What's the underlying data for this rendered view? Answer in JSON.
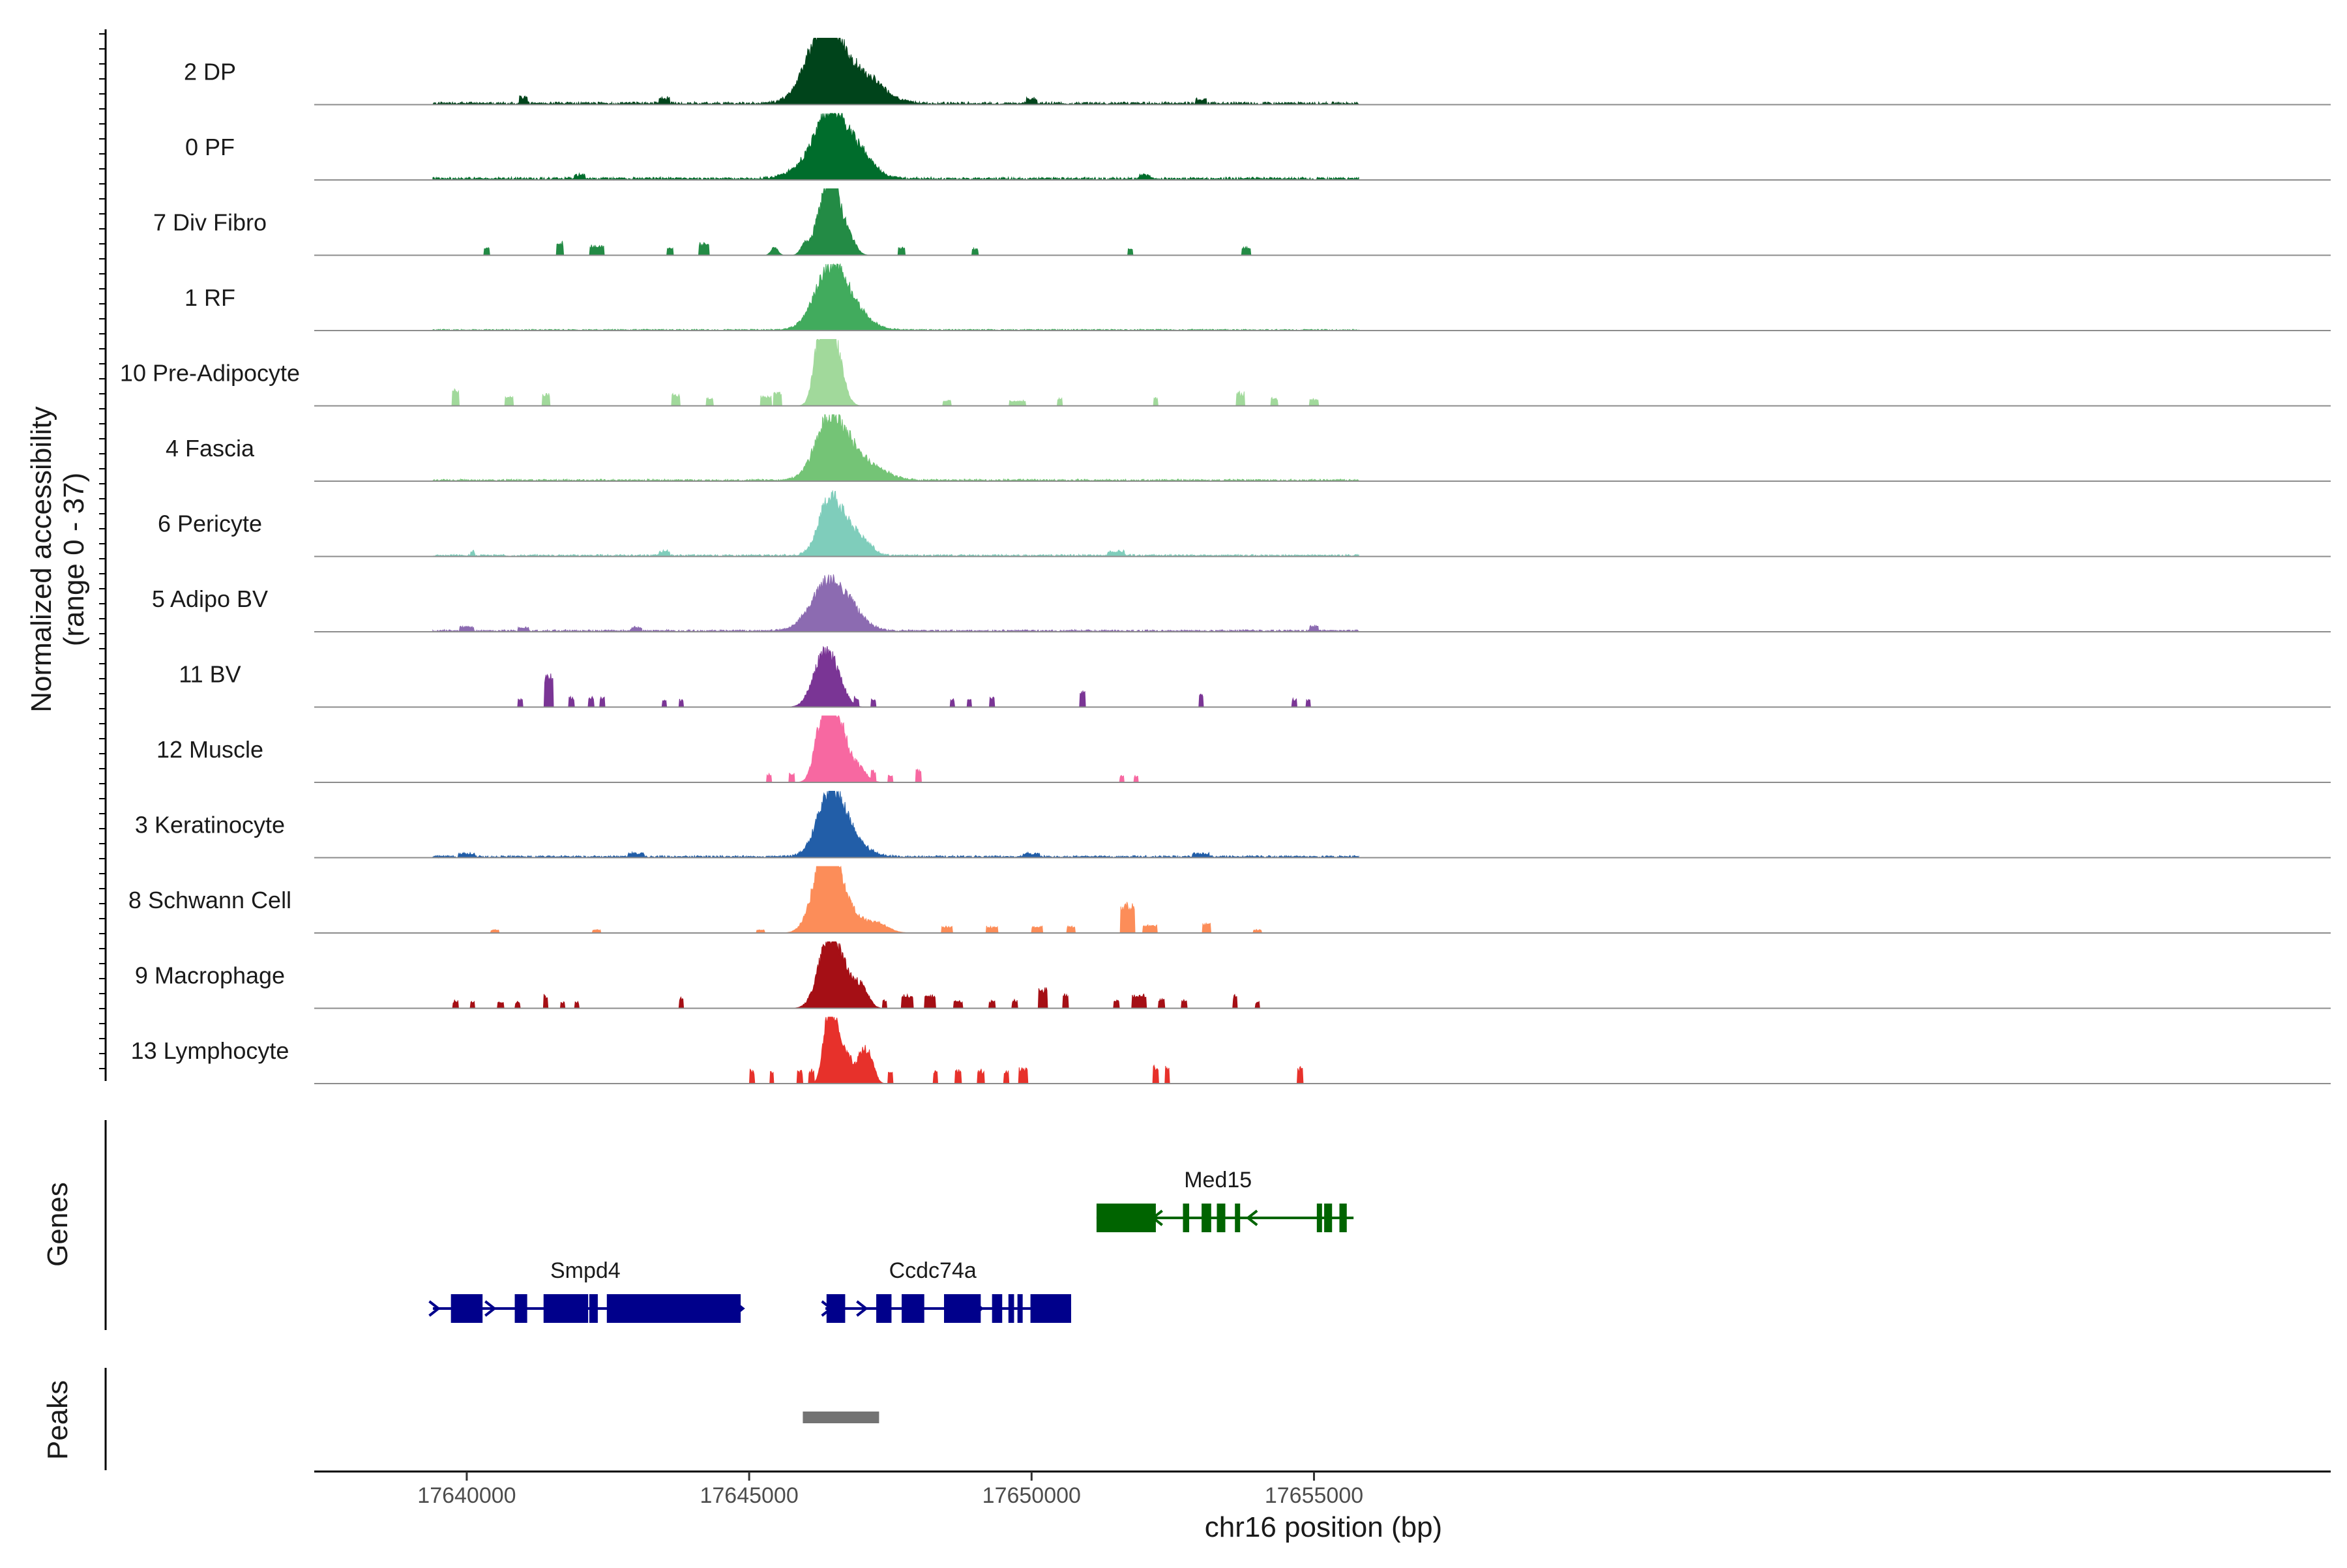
{
  "chart_data": {
    "type": "coverage",
    "chromosome": "chr16",
    "xlabel": "chr16 position (bp)",
    "ylabel": "Normalized accessibility",
    "ylabel_range": "(range 0 - 37)",
    "xlim": [
      17637300,
      17673000
    ],
    "xticks": [
      {
        "value": 17640000,
        "label": "17640000"
      },
      {
        "value": 17645000,
        "label": "17645000"
      },
      {
        "value": 17650000,
        "label": "17650000"
      },
      {
        "value": 17655000,
        "label": "17655000"
      }
    ],
    "tracks": [
      {
        "name": "2 DP",
        "color": "#00441b",
        "baseline": 0.04,
        "peaks": [
          [
            17646300,
            1.0,
            300
          ],
          [
            17646750,
            0.35,
            350
          ],
          [
            17647200,
            0.2,
            300
          ]
        ],
        "spots": [
          [
            17641000,
            0.1,
            150
          ],
          [
            17643500,
            0.08,
            200
          ],
          [
            17650000,
            0.08,
            200
          ],
          [
            17653000,
            0.06,
            200
          ]
        ]
      },
      {
        "name": "0 PF",
        "color": "#006d2c",
        "baseline": 0.04,
        "peaks": [
          [
            17646450,
            1.0,
            260
          ],
          [
            17646950,
            0.35,
            250
          ],
          [
            17646000,
            0.15,
            300
          ]
        ],
        "spots": [
          [
            17642000,
            0.06,
            200
          ],
          [
            17652000,
            0.06,
            200
          ]
        ]
      },
      {
        "name": "7 Div Fibro",
        "color": "#238b45",
        "baseline": 0.0,
        "peaks": [
          [
            17646500,
            1.0,
            120
          ],
          [
            17646350,
            0.55,
            90
          ],
          [
            17646200,
            0.35,
            90
          ],
          [
            17646750,
            0.3,
            120
          ],
          [
            17645450,
            0.12,
            60
          ],
          [
            17646000,
            0.18,
            80
          ]
        ],
        "spots": [
          [
            17640350,
            0.12,
            100
          ],
          [
            17641650,
            0.2,
            120
          ],
          [
            17642300,
            0.14,
            250
          ],
          [
            17643600,
            0.12,
            120
          ],
          [
            17644200,
            0.18,
            180
          ],
          [
            17647700,
            0.12,
            120
          ],
          [
            17649000,
            0.1,
            120
          ],
          [
            17651750,
            0.1,
            80
          ],
          [
            17653800,
            0.12,
            160
          ]
        ]
      },
      {
        "name": "1 RF",
        "color": "#41ab5d",
        "baseline": 0.02,
        "peaks": [
          [
            17646450,
            0.9,
            280
          ],
          [
            17646850,
            0.2,
            300
          ]
        ],
        "spots": []
      },
      {
        "name": "10 Pre-Adipocyte",
        "color": "#a1d99b",
        "baseline": 0.0,
        "peaks": [
          [
            17646250,
            0.95,
            110
          ],
          [
            17646450,
            0.8,
            110
          ],
          [
            17646600,
            0.45,
            120
          ]
        ],
        "spots": [
          [
            17639800,
            0.25,
            120
          ],
          [
            17640750,
            0.15,
            150
          ],
          [
            17641400,
            0.18,
            130
          ],
          [
            17643700,
            0.18,
            150
          ],
          [
            17644300,
            0.12,
            120
          ],
          [
            17645300,
            0.15,
            200
          ],
          [
            17645500,
            0.2,
            150
          ],
          [
            17648500,
            0.08,
            150
          ],
          [
            17649750,
            0.08,
            300
          ],
          [
            17650500,
            0.12,
            80
          ],
          [
            17652200,
            0.12,
            80
          ],
          [
            17653700,
            0.2,
            150
          ],
          [
            17654300,
            0.12,
            120
          ],
          [
            17655000,
            0.1,
            150
          ]
        ]
      },
      {
        "name": "4 Fascia",
        "color": "#74c476",
        "baseline": 0.03,
        "peaks": [
          [
            17646450,
            0.95,
            260
          ],
          [
            17646900,
            0.25,
            250
          ],
          [
            17647300,
            0.12,
            250
          ]
        ],
        "spots": []
      },
      {
        "name": "6 Pericyte",
        "color": "#7fcdbb",
        "baseline": 0.03,
        "peaks": [
          [
            17646450,
            0.9,
            200
          ],
          [
            17646800,
            0.25,
            150
          ],
          [
            17647050,
            0.18,
            150
          ]
        ],
        "spots": [
          [
            17640100,
            0.06,
            80
          ],
          [
            17643500,
            0.06,
            200
          ],
          [
            17651500,
            0.06,
            300
          ]
        ]
      },
      {
        "name": "5 Adipo BV",
        "color": "#8c6bb1",
        "baseline": 0.03,
        "peaks": [
          [
            17646400,
            0.7,
            300
          ],
          [
            17646800,
            0.2,
            250
          ]
        ],
        "spots": [
          [
            17640000,
            0.06,
            250
          ],
          [
            17641000,
            0.05,
            200
          ],
          [
            17643000,
            0.05,
            200
          ],
          [
            17655000,
            0.08,
            150
          ]
        ]
      },
      {
        "name": "11 BV",
        "color": "#7a3595",
        "baseline": 0.0,
        "peaks": [
          [
            17646300,
            0.7,
            180
          ],
          [
            17646550,
            0.35,
            150
          ]
        ],
        "spots": [
          [
            17640950,
            0.12,
            80
          ],
          [
            17641450,
            0.5,
            150
          ],
          [
            17641850,
            0.15,
            100
          ],
          [
            17642200,
            0.15,
            100
          ],
          [
            17642400,
            0.15,
            80
          ],
          [
            17643500,
            0.12,
            80
          ],
          [
            17643800,
            0.12,
            80
          ],
          [
            17646900,
            0.12,
            80
          ],
          [
            17647200,
            0.12,
            80
          ],
          [
            17648600,
            0.12,
            80
          ],
          [
            17648900,
            0.12,
            80
          ],
          [
            17649300,
            0.15,
            80
          ],
          [
            17650900,
            0.25,
            100
          ],
          [
            17653000,
            0.2,
            80
          ],
          [
            17654650,
            0.12,
            80
          ],
          [
            17654900,
            0.12,
            80
          ]
        ]
      },
      {
        "name": "12 Muscle",
        "color": "#f768a1",
        "baseline": 0.0,
        "peaks": [
          [
            17646450,
            1.0,
            140
          ],
          [
            17646250,
            0.55,
            120
          ],
          [
            17646650,
            0.45,
            120
          ],
          [
            17646900,
            0.25,
            150
          ]
        ],
        "spots": [
          [
            17645350,
            0.12,
            80
          ],
          [
            17645750,
            0.15,
            100
          ],
          [
            17647200,
            0.15,
            80
          ],
          [
            17647500,
            0.12,
            80
          ],
          [
            17648000,
            0.2,
            100
          ],
          [
            17651600,
            0.1,
            80
          ],
          [
            17651850,
            0.1,
            80
          ]
        ]
      },
      {
        "name": "3 Keratinocyte",
        "color": "#225ea8",
        "baseline": 0.03,
        "peaks": [
          [
            17646450,
            1.0,
            230
          ],
          [
            17646850,
            0.2,
            250
          ]
        ],
        "spots": [
          [
            17640000,
            0.05,
            300
          ],
          [
            17643000,
            0.05,
            300
          ],
          [
            17650000,
            0.05,
            300
          ],
          [
            17653000,
            0.05,
            300
          ]
        ]
      },
      {
        "name": "8 Schwann Cell",
        "color": "#fc8d59",
        "baseline": 0.0,
        "peaks": [
          [
            17646300,
            0.95,
            200
          ],
          [
            17646500,
            0.7,
            150
          ],
          [
            17646800,
            0.3,
            180
          ],
          [
            17647250,
            0.15,
            200
          ]
        ],
        "spots": [
          [
            17640500,
            0.05,
            150
          ],
          [
            17642300,
            0.05,
            150
          ],
          [
            17645200,
            0.05,
            150
          ],
          [
            17648500,
            0.1,
            200
          ],
          [
            17649300,
            0.1,
            200
          ],
          [
            17650100,
            0.1,
            200
          ],
          [
            17650700,
            0.1,
            150
          ],
          [
            17651700,
            0.45,
            250
          ],
          [
            17652100,
            0.12,
            250
          ],
          [
            17653100,
            0.15,
            150
          ],
          [
            17654000,
            0.05,
            150
          ]
        ]
      },
      {
        "name": "9 Macrophage",
        "color": "#a50f15",
        "baseline": 0.0,
        "peaks": [
          [
            17646400,
            1.0,
            180
          ],
          [
            17646700,
            0.4,
            180
          ],
          [
            17647000,
            0.25,
            120
          ]
        ],
        "spots": [
          [
            17639800,
            0.12,
            100
          ],
          [
            17640100,
            0.1,
            80
          ],
          [
            17640600,
            0.1,
            100
          ],
          [
            17640900,
            0.1,
            80
          ],
          [
            17641400,
            0.2,
            80
          ],
          [
            17641700,
            0.1,
            80
          ],
          [
            17641950,
            0.1,
            80
          ],
          [
            17643800,
            0.15,
            80
          ],
          [
            17647400,
            0.12,
            80
          ],
          [
            17647800,
            0.2,
            200
          ],
          [
            17648200,
            0.2,
            200
          ],
          [
            17648700,
            0.12,
            150
          ],
          [
            17649300,
            0.12,
            100
          ],
          [
            17649700,
            0.12,
            100
          ],
          [
            17650200,
            0.3,
            150
          ],
          [
            17650600,
            0.2,
            100
          ],
          [
            17651500,
            0.12,
            100
          ],
          [
            17651900,
            0.2,
            250
          ],
          [
            17652300,
            0.15,
            100
          ],
          [
            17652700,
            0.12,
            100
          ],
          [
            17653600,
            0.2,
            80
          ],
          [
            17654000,
            0.1,
            80
          ]
        ]
      },
      {
        "name": "13 Lymphocyte",
        "color": "#e7312b",
        "baseline": 0.0,
        "peaks": [
          [
            17646400,
            1.0,
            90
          ],
          [
            17646550,
            0.6,
            90
          ],
          [
            17646750,
            0.4,
            90
          ],
          [
            17647000,
            0.45,
            80
          ],
          [
            17647150,
            0.35,
            80
          ]
        ],
        "spots": [
          [
            17645050,
            0.2,
            80
          ],
          [
            17645400,
            0.2,
            60
          ],
          [
            17645900,
            0.2,
            100
          ],
          [
            17646100,
            0.2,
            100
          ],
          [
            17647500,
            0.2,
            80
          ],
          [
            17648300,
            0.2,
            80
          ],
          [
            17648700,
            0.2,
            100
          ],
          [
            17649100,
            0.2,
            120
          ],
          [
            17649550,
            0.2,
            80
          ],
          [
            17649850,
            0.25,
            150
          ],
          [
            17652200,
            0.25,
            100
          ],
          [
            17652400,
            0.25,
            80
          ],
          [
            17654750,
            0.25,
            100
          ]
        ]
      }
    ],
    "genes_label": "Genes",
    "peaks_label": "Peaks",
    "genes": [
      {
        "name": "Smpd4",
        "color": "#00008b",
        "strand": "+",
        "row": 2,
        "start": 17639400,
        "end": 17644850,
        "label_pos": 17642100,
        "exons": [
          [
            17639720,
            17640280
          ],
          [
            17640850,
            17641070
          ],
          [
            17641360,
            17642150
          ],
          [
            17642170,
            17642320
          ],
          [
            17642480,
            17644850
          ]
        ],
        "arrows": [
          17639430,
          17640420,
          17644820
        ]
      },
      {
        "name": "Ccdc74a",
        "color": "#00008b",
        "strand": "+",
        "row": 2,
        "start": 17646350,
        "end": 17650700,
        "label_pos": 17648250,
        "exons": [
          [
            17646370,
            17646700
          ],
          [
            17647250,
            17647520
          ],
          [
            17647700,
            17648100
          ],
          [
            17648450,
            17649100
          ],
          [
            17649300,
            17649480
          ],
          [
            17649590,
            17649690
          ],
          [
            17649750,
            17649820
          ],
          [
            17649980,
            17650700
          ]
        ],
        "arrows": [
          17646380,
          17647000,
          17649050
        ]
      },
      {
        "name": "Med15",
        "color": "#006400",
        "strand": "-",
        "row": 1,
        "start": 17651150,
        "end": 17655700,
        "label_pos": 17653300,
        "exons": [
          [
            17651150,
            17652200
          ],
          [
            17652680,
            17652790
          ],
          [
            17653010,
            17653180
          ],
          [
            17653280,
            17653430
          ],
          [
            17653600,
            17653650
          ],
          [
            17655050,
            17655120
          ],
          [
            17655180,
            17655320
          ],
          [
            17655450,
            17655580
          ]
        ],
        "arrows": [
          17652220,
          17653900
        ]
      }
    ],
    "peak_regions": [
      [
        17645950,
        17647300
      ]
    ],
    "peak_color": "#737373"
  }
}
